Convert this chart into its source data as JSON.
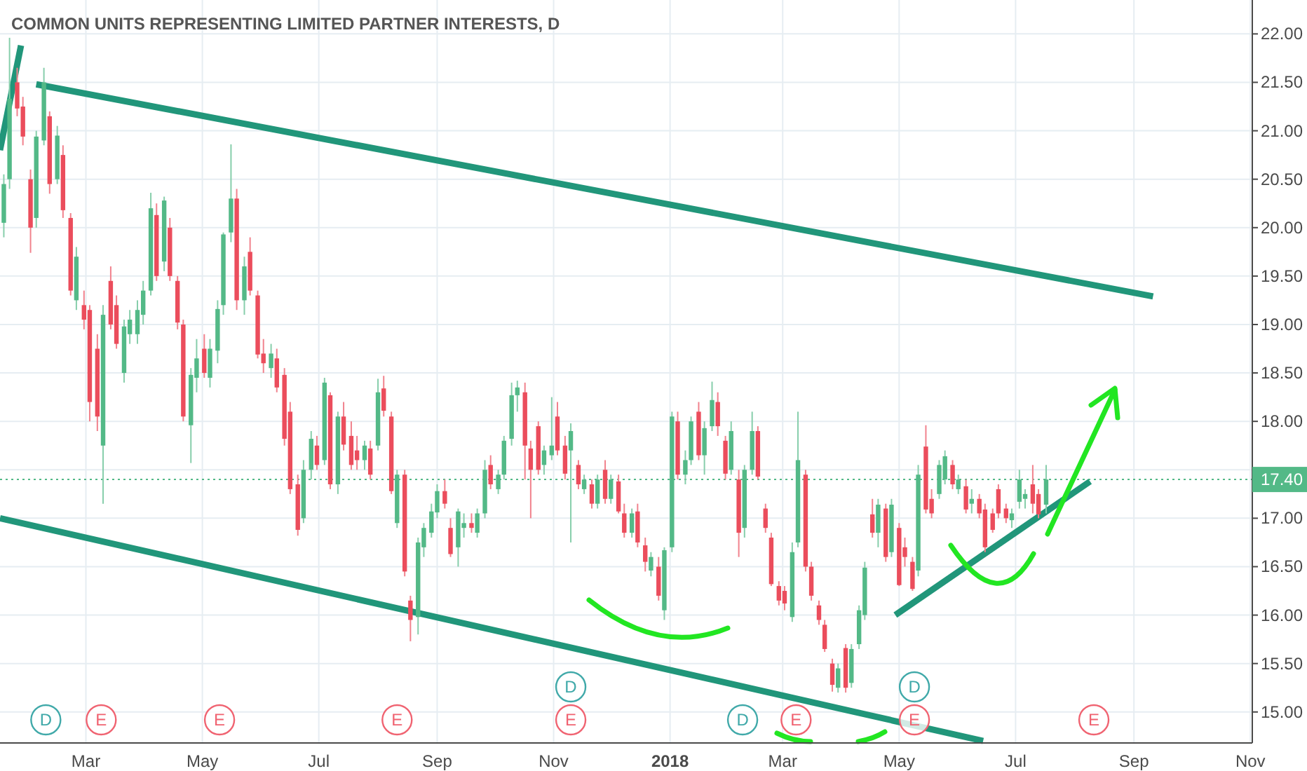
{
  "chart_data": {
    "type": "candlestick",
    "title": "COMMON UNITS REPRESENTING LIMITED PARTNER INTERESTS, D",
    "xlim": [
      "2017-01-15",
      "2018-11-02"
    ],
    "ylim": [
      14.68,
      22.35
    ],
    "xticks": [
      {
        "value": "2017-03-01",
        "label": "Mar"
      },
      {
        "value": "2017-05-01",
        "label": "May"
      },
      {
        "value": "2017-07-01",
        "label": "Jul"
      },
      {
        "value": "2017-09-01",
        "label": "Sep"
      },
      {
        "value": "2017-11-01",
        "label": "Nov"
      },
      {
        "value": "2018-01-01",
        "label": "2018"
      },
      {
        "value": "2018-03-01",
        "label": "Mar"
      },
      {
        "value": "2018-05-01",
        "label": "May"
      },
      {
        "value": "2018-07-01",
        "label": "Jul"
      },
      {
        "value": "2018-09-01",
        "label": "Sep"
      },
      {
        "value": "2018-11-01",
        "label": "Nov"
      }
    ],
    "yticks": [
      {
        "value": 15,
        "label": "15.00"
      },
      {
        "value": 15.5,
        "label": "15.50"
      },
      {
        "value": 16,
        "label": "16.00"
      },
      {
        "value": 16.5,
        "label": "16.50"
      },
      {
        "value": 17,
        "label": "17.00"
      },
      {
        "value": 17.5,
        "label": null
      },
      {
        "value": 18,
        "label": "18.00"
      },
      {
        "value": 18.5,
        "label": "18.50"
      },
      {
        "value": 19,
        "label": "19.00"
      },
      {
        "value": 19.5,
        "label": "19.50"
      },
      {
        "value": 20,
        "label": "20.00"
      },
      {
        "value": 20.5,
        "label": "20.50"
      },
      {
        "value": 21,
        "label": "21.00"
      },
      {
        "value": 21.5,
        "label": "21.50"
      },
      {
        "value": 22,
        "label": "22.00"
      }
    ],
    "grid": true,
    "ref_lines": [
      {
        "axis": "y",
        "value": 17.4,
        "label": "17.40",
        "color": "#53b987",
        "line_style": "dotted"
      }
    ],
    "annotations": [
      {
        "text": "D",
        "x": "2017-02-08"
      },
      {
        "text": "E",
        "x": "2017-03-09"
      },
      {
        "text": "E",
        "x": "2017-05-10"
      },
      {
        "text": "E",
        "x": "2017-08-11"
      },
      {
        "text": "E",
        "x": "2017-11-10"
      },
      {
        "text": "D",
        "x": "2017-11-10"
      },
      {
        "text": "D",
        "x": "2018-02-08"
      },
      {
        "text": "E",
        "x": "2018-03-08"
      },
      {
        "text": "E",
        "x": "2018-05-09"
      },
      {
        "text": "D",
        "x": "2018-05-09"
      },
      {
        "text": "E",
        "x": "2018-08-11"
      }
    ],
    "series": [
      {
        "type": "line",
        "color": "#21967a",
        "x": [
          "2017-01-15",
          "2017-01-26"
        ],
        "values": [
          20.8,
          21.88
        ]
      },
      {
        "type": "line",
        "color": "#21967a",
        "x": [
          "2017-02-03",
          "2018-09-11"
        ],
        "values": [
          21.48,
          19.29
        ]
      },
      {
        "type": "line",
        "color": "#21967a",
        "x": [
          "2017-01-15",
          "2018-06-14"
        ],
        "values": [
          17.0,
          14.7
        ]
      },
      {
        "type": "line",
        "color": "#21967a",
        "x": [
          "2018-04-29",
          "2018-08-09"
        ],
        "values": [
          16.0,
          17.38
        ]
      },
      {
        "x": [
          "2017-01-17",
          "2017-01-20",
          "2017-01-24",
          "2017-01-27",
          "2017-01-31",
          "2017-02-03",
          "2017-02-07",
          "2017-02-10",
          "2017-02-14",
          "2017-02-17",
          "2017-02-21",
          "2017-02-24",
          "2017-02-28",
          "2017-03-03",
          "2017-03-07",
          "2017-03-10",
          "2017-03-14",
          "2017-03-17",
          "2017-03-21",
          "2017-03-24",
          "2017-03-28",
          "2017-03-31",
          "2017-04-04",
          "2017-04-07",
          "2017-04-11",
          "2017-04-14",
          "2017-04-18",
          "2017-04-21",
          "2017-04-25",
          "2017-04-28",
          "2017-05-02",
          "2017-05-05",
          "2017-05-09",
          "2017-05-12",
          "2017-05-16",
          "2017-05-19",
          "2017-05-23",
          "2017-05-26",
          "2017-05-30",
          "2017-06-02",
          "2017-06-06",
          "2017-06-09",
          "2017-06-13",
          "2017-06-16",
          "2017-06-20",
          "2017-06-23",
          "2017-06-27",
          "2017-06-30",
          "2017-07-04",
          "2017-07-07",
          "2017-07-11",
          "2017-07-14",
          "2017-07-18",
          "2017-07-21",
          "2017-07-25",
          "2017-07-28",
          "2017-08-01",
          "2017-08-04",
          "2017-08-08",
          "2017-08-11",
          "2017-08-15",
          "2017-08-18",
          "2017-08-22",
          "2017-08-25",
          "2017-08-29",
          "2017-09-01",
          "2017-09-05",
          "2017-09-08",
          "2017-09-12",
          "2017-09-15",
          "2017-09-19",
          "2017-09-22",
          "2017-09-26",
          "2017-09-29",
          "2017-10-03",
          "2017-10-06",
          "2017-10-10",
          "2017-10-13",
          "2017-10-17",
          "2017-10-20",
          "2017-10-24",
          "2017-10-27",
          "2017-10-31",
          "2017-11-03",
          "2017-11-07",
          "2017-11-10",
          "2017-11-14",
          "2017-11-17",
          "2017-11-21",
          "2017-11-24",
          "2017-11-28",
          "2017-12-01",
          "2017-12-05",
          "2017-12-08",
          "2017-12-12",
          "2017-12-15",
          "2017-12-19",
          "2017-12-22",
          "2017-12-26",
          "2017-12-29",
          "2018-01-02",
          "2018-01-05",
          "2018-01-09",
          "2018-01-12",
          "2018-01-16",
          "2018-01-19",
          "2018-01-23",
          "2018-01-26",
          "2018-01-30",
          "2018-02-02",
          "2018-02-06",
          "2018-02-09",
          "2018-02-13",
          "2018-02-16",
          "2018-02-20",
          "2018-02-23",
          "2018-02-27",
          "2018-03-02",
          "2018-03-06",
          "2018-03-09",
          "2018-03-13",
          "2018-03-16",
          "2018-03-20",
          "2018-03-23",
          "2018-03-27",
          "2018-03-30",
          "2018-04-03",
          "2018-04-06",
          "2018-04-10",
          "2018-04-13",
          "2018-04-17",
          "2018-04-20",
          "2018-04-24",
          "2018-04-27",
          "2018-05-01",
          "2018-05-04",
          "2018-05-08",
          "2018-05-11",
          "2018-05-15",
          "2018-05-18",
          "2018-05-22",
          "2018-05-25",
          "2018-05-29",
          "2018-06-01",
          "2018-06-05",
          "2018-06-08",
          "2018-06-12",
          "2018-06-15",
          "2018-06-19",
          "2018-06-22",
          "2018-06-26",
          "2018-06-29",
          "2018-07-03",
          "2018-07-06",
          "2018-07-10",
          "2018-07-13",
          "2018-07-17"
        ],
        "ohlc": [
          [
            20.05,
            20.55,
            19.9,
            20.45
          ],
          [
            20.5,
            21.96,
            20.4,
            21.33
          ],
          [
            21.5,
            21.65,
            21.15,
            21.23
          ],
          [
            21.25,
            21.35,
            20.85,
            20.94
          ],
          [
            20.5,
            20.6,
            19.74,
            20.0
          ],
          [
            20.1,
            21.0,
            20.0,
            20.94
          ],
          [
            20.9,
            21.65,
            20.85,
            21.5
          ],
          [
            21.15,
            21.2,
            20.35,
            20.45
          ],
          [
            20.5,
            21.05,
            20.45,
            20.95
          ],
          [
            20.75,
            20.85,
            20.1,
            20.18
          ],
          [
            20.1,
            20.15,
            19.3,
            19.35
          ],
          [
            19.25,
            19.8,
            19.15,
            19.7
          ],
          [
            19.2,
            19.35,
            18.95,
            19.05
          ],
          [
            19.15,
            19.2,
            18.0,
            18.2
          ],
          [
            18.75,
            18.9,
            17.9,
            18.05
          ],
          [
            17.75,
            19.2,
            17.15,
            19.1
          ],
          [
            19.45,
            19.6,
            18.95,
            19.0
          ],
          [
            19.2,
            19.3,
            18.75,
            18.8
          ],
          [
            18.5,
            19.05,
            18.4,
            18.98
          ],
          [
            18.9,
            19.15,
            18.8,
            19.05
          ],
          [
            18.9,
            19.25,
            18.8,
            19.15
          ],
          [
            19.1,
            19.45,
            19.0,
            19.35
          ],
          [
            19.35,
            20.36,
            19.3,
            20.2
          ],
          [
            20.13,
            20.25,
            19.45,
            19.5
          ],
          [
            19.65,
            20.32,
            19.55,
            20.28
          ],
          [
            20.0,
            20.1,
            19.45,
            19.5
          ],
          [
            19.45,
            19.5,
            18.95,
            19.02
          ],
          [
            19.0,
            19.05,
            18.0,
            18.05
          ],
          [
            17.96,
            18.55,
            17.57,
            18.48
          ],
          [
            18.45,
            18.85,
            18.3,
            18.65
          ],
          [
            18.75,
            18.9,
            18.45,
            18.5
          ],
          [
            18.45,
            18.85,
            18.35,
            18.75
          ],
          [
            18.73,
            19.25,
            18.6,
            19.16
          ],
          [
            19.2,
            19.95,
            19.1,
            19.93
          ],
          [
            19.95,
            20.86,
            19.85,
            20.3
          ],
          [
            20.3,
            20.4,
            19.15,
            19.25
          ],
          [
            19.25,
            19.7,
            19.1,
            19.6
          ],
          [
            19.75,
            19.9,
            19.3,
            19.35
          ],
          [
            19.3,
            19.35,
            18.65,
            18.69
          ],
          [
            18.7,
            18.85,
            18.5,
            18.6
          ],
          [
            18.55,
            18.8,
            18.45,
            18.7
          ],
          [
            18.65,
            18.75,
            18.3,
            18.35
          ],
          [
            18.48,
            18.55,
            17.75,
            17.82
          ],
          [
            18.1,
            18.2,
            17.25,
            17.3
          ],
          [
            17.35,
            17.45,
            16.82,
            16.88
          ],
          [
            17.0,
            17.6,
            16.95,
            17.5
          ],
          [
            17.5,
            17.9,
            17.4,
            17.82
          ],
          [
            17.75,
            17.85,
            17.5,
            17.55
          ],
          [
            17.6,
            18.45,
            17.55,
            18.4
          ],
          [
            18.27,
            18.3,
            17.3,
            17.35
          ],
          [
            17.35,
            18.1,
            17.25,
            18.05
          ],
          [
            18.05,
            18.2,
            17.7,
            17.76
          ],
          [
            17.85,
            18.0,
            17.5,
            17.55
          ],
          [
            17.7,
            17.85,
            17.5,
            17.6
          ],
          [
            17.6,
            17.8,
            17.5,
            17.75
          ],
          [
            17.72,
            17.8,
            17.4,
            17.45
          ],
          [
            17.75,
            18.44,
            17.7,
            18.3
          ],
          [
            18.34,
            18.47,
            18.05,
            18.11
          ],
          [
            18.05,
            18.1,
            17.25,
            17.28
          ],
          [
            16.95,
            17.5,
            16.9,
            17.45
          ],
          [
            17.45,
            17.5,
            16.4,
            16.45
          ],
          [
            16.15,
            16.2,
            15.73,
            15.95
          ],
          [
            15.98,
            16.8,
            15.8,
            16.75
          ],
          [
            16.7,
            16.95,
            16.6,
            16.9
          ],
          [
            16.85,
            17.15,
            16.8,
            17.07
          ],
          [
            17.06,
            17.35,
            17.0,
            17.28
          ],
          [
            17.28,
            17.4,
            17.1,
            17.15
          ],
          [
            16.9,
            17.0,
            16.6,
            16.63
          ],
          [
            16.7,
            17.1,
            16.5,
            17.07
          ],
          [
            16.9,
            17.05,
            16.8,
            16.95
          ],
          [
            16.95,
            17.05,
            16.85,
            16.9
          ],
          [
            16.85,
            17.1,
            16.8,
            17.05
          ],
          [
            17.05,
            17.6,
            17.0,
            17.5
          ],
          [
            17.55,
            17.65,
            17.3,
            17.35
          ],
          [
            17.3,
            17.5,
            17.25,
            17.45
          ],
          [
            17.45,
            17.85,
            17.4,
            17.8
          ],
          [
            17.82,
            18.4,
            17.75,
            18.27
          ],
          [
            18.27,
            18.42,
            18.1,
            18.35
          ],
          [
            18.3,
            18.4,
            17.4,
            17.75
          ],
          [
            17.72,
            17.8,
            17.0,
            17.5
          ],
          [
            17.95,
            18.0,
            17.45,
            17.5
          ],
          [
            17.55,
            17.75,
            17.45,
            17.7
          ],
          [
            17.65,
            18.25,
            17.6,
            17.75
          ],
          [
            18.05,
            18.2,
            17.65,
            17.7
          ],
          [
            17.75,
            17.85,
            17.4,
            17.46
          ],
          [
            17.7,
            17.98,
            16.75,
            17.9
          ],
          [
            17.55,
            17.6,
            17.3,
            17.35
          ],
          [
            17.3,
            17.45,
            17.25,
            17.4
          ],
          [
            17.35,
            17.4,
            17.1,
            17.15
          ],
          [
            17.15,
            17.45,
            17.1,
            17.4
          ],
          [
            17.5,
            17.6,
            17.15,
            17.2
          ],
          [
            17.2,
            17.45,
            17.15,
            17.4
          ],
          [
            17.38,
            17.45,
            17.05,
            17.07
          ],
          [
            17.05,
            17.15,
            16.8,
            16.85
          ],
          [
            16.85,
            17.1,
            16.8,
            17.05
          ],
          [
            17.07,
            17.15,
            16.7,
            16.75
          ],
          [
            16.72,
            16.8,
            16.45,
            16.55
          ],
          [
            16.46,
            16.65,
            16.4,
            16.6
          ],
          [
            16.5,
            16.6,
            16.15,
            16.2
          ],
          [
            16.05,
            16.7,
            15.95,
            16.67
          ],
          [
            16.7,
            18.1,
            16.65,
            18.05
          ],
          [
            18.0,
            18.1,
            17.4,
            17.45
          ],
          [
            17.45,
            17.7,
            17.35,
            17.6
          ],
          [
            17.6,
            18.05,
            17.55,
            18.0
          ],
          [
            18.1,
            18.2,
            17.6,
            17.65
          ],
          [
            17.65,
            18.0,
            17.45,
            17.93
          ],
          [
            17.95,
            18.41,
            17.9,
            18.22
          ],
          [
            18.2,
            18.3,
            17.85,
            17.95
          ],
          [
            17.8,
            17.85,
            17.4,
            17.46
          ],
          [
            17.5,
            18.0,
            17.45,
            17.9
          ],
          [
            17.4,
            17.5,
            16.6,
            16.85
          ],
          [
            16.9,
            17.55,
            16.8,
            17.5
          ],
          [
            17.5,
            18.1,
            17.45,
            17.9
          ],
          [
            17.9,
            17.95,
            17.4,
            17.43
          ],
          [
            17.1,
            17.15,
            16.85,
            16.9
          ],
          [
            16.8,
            16.85,
            16.3,
            16.32
          ],
          [
            16.3,
            16.35,
            16.1,
            16.15
          ],
          [
            16.25,
            16.3,
            16.05,
            16.12
          ],
          [
            15.98,
            16.75,
            15.93,
            16.65
          ],
          [
            16.75,
            18.1,
            16.7,
            17.6
          ],
          [
            17.45,
            17.5,
            16.45,
            16.5
          ],
          [
            16.5,
            16.55,
            16.15,
            16.2
          ],
          [
            16.1,
            16.15,
            15.9,
            15.95
          ],
          [
            15.9,
            15.95,
            15.62,
            15.65
          ],
          [
            15.5,
            15.55,
            15.21,
            15.28
          ],
          [
            15.25,
            15.5,
            15.2,
            15.45
          ],
          [
            15.66,
            15.7,
            15.2,
            15.25
          ],
          [
            15.3,
            15.7,
            15.25,
            15.65
          ],
          [
            15.7,
            16.1,
            15.65,
            16.05
          ],
          [
            16.0,
            16.55,
            15.95,
            16.49
          ],
          [
            17.04,
            17.2,
            16.8,
            16.85
          ],
          [
            16.85,
            17.2,
            16.7,
            17.14
          ],
          [
            17.1,
            17.15,
            16.55,
            16.6
          ],
          [
            16.65,
            17.2,
            16.6,
            17.14
          ],
          [
            16.9,
            16.95,
            16.3,
            16.31
          ],
          [
            16.7,
            16.8,
            16.5,
            16.6
          ],
          [
            16.55,
            16.6,
            16.25,
            16.27
          ],
          [
            16.46,
            17.55,
            16.4,
            17.45
          ],
          [
            17.74,
            17.96,
            17.05,
            17.09
          ],
          [
            17.2,
            17.3,
            17.0,
            17.05
          ],
          [
            17.25,
            17.6,
            17.2,
            17.55
          ],
          [
            17.4,
            17.7,
            17.35,
            17.64
          ],
          [
            17.55,
            17.6,
            17.3,
            17.35
          ],
          [
            17.3,
            17.45,
            17.25,
            17.4
          ],
          [
            17.33,
            17.4,
            17.05,
            17.09
          ],
          [
            17.15,
            17.3,
            17.05,
            17.2
          ],
          [
            17.2,
            17.25,
            17.0,
            17.05
          ],
          [
            17.09,
            17.15,
            16.65,
            16.7
          ],
          [
            17.05,
            17.1,
            16.85,
            16.88
          ],
          [
            17.3,
            17.35,
            17.0,
            17.05
          ],
          [
            17.1,
            17.15,
            16.95,
            17.0
          ],
          [
            16.98,
            17.1,
            16.9,
            17.05
          ],
          [
            17.17,
            17.5,
            17.1,
            17.4
          ],
          [
            17.2,
            17.3,
            17.1,
            17.25
          ],
          [
            17.35,
            17.55,
            17.05,
            17.15
          ],
          [
            17.25,
            17.3,
            17.0,
            17.04
          ],
          [
            17.14,
            17.55,
            17.05,
            17.4
          ]
        ],
        "colors": [
          "#53b987",
          "#53b987",
          "#eb4d5c",
          "#eb4d5c",
          "#eb4d5c",
          "#53b987",
          "#53b987",
          "#eb4d5c",
          "#53b987",
          "#eb4d5c",
          "#eb4d5c",
          "#53b987",
          "#eb4d5c",
          "#eb4d5c",
          "#eb4d5c",
          "#53b987",
          "#eb4d5c",
          "#eb4d5c",
          "#53b987",
          "#53b987",
          "#53b987",
          "#53b987",
          "#53b987",
          "#eb4d5c",
          "#53b987",
          "#eb4d5c",
          "#eb4d5c",
          "#eb4d5c",
          "#53b987",
          "#53b987",
          "#eb4d5c",
          "#53b987",
          "#53b987",
          "#53b987",
          "#53b987",
          "#eb4d5c",
          "#53b987",
          "#eb4d5c",
          "#eb4d5c",
          "#eb4d5c",
          "#53b987",
          "#eb4d5c",
          "#eb4d5c",
          "#eb4d5c",
          "#eb4d5c",
          "#53b987",
          "#53b987",
          "#eb4d5c",
          "#53b987",
          "#eb4d5c",
          "#53b987",
          "#eb4d5c",
          "#eb4d5c",
          "#eb4d5c",
          "#53b987",
          "#eb4d5c",
          "#53b987",
          "#eb4d5c",
          "#eb4d5c",
          "#53b987",
          "#eb4d5c",
          "#eb4d5c",
          "#53b987",
          "#53b987",
          "#53b987",
          "#53b987",
          "#eb4d5c",
          "#eb4d5c",
          "#53b987",
          "#53b987",
          "#eb4d5c",
          "#53b987",
          "#53b987",
          "#eb4d5c",
          "#53b987",
          "#53b987",
          "#53b987",
          "#53b987",
          "#eb4d5c",
          "#eb4d5c",
          "#eb4d5c",
          "#53b987",
          "#53b987",
          "#eb4d5c",
          "#eb4d5c",
          "#53b987",
          "#eb4d5c",
          "#53b987",
          "#eb4d5c",
          "#53b987",
          "#eb4d5c",
          "#53b987",
          "#eb4d5c",
          "#eb4d5c",
          "#53b987",
          "#eb4d5c",
          "#eb4d5c",
          "#53b987",
          "#eb4d5c",
          "#53b987",
          "#53b987",
          "#eb4d5c",
          "#53b987",
          "#53b987",
          "#eb4d5c",
          "#53b987",
          "#53b987",
          "#eb4d5c",
          "#eb4d5c",
          "#53b987",
          "#eb4d5c",
          "#53b987",
          "#53b987",
          "#eb4d5c",
          "#eb4d5c",
          "#eb4d5c",
          "#eb4d5c",
          "#eb4d5c",
          "#53b987",
          "#53b987",
          "#eb4d5c",
          "#eb4d5c",
          "#eb4d5c",
          "#eb4d5c",
          "#eb4d5c",
          "#53b987",
          "#eb4d5c",
          "#53b987",
          "#53b987",
          "#53b987",
          "#eb4d5c",
          "#53b987",
          "#eb4d5c",
          "#53b987",
          "#eb4d5c",
          "#eb4d5c",
          "#eb4d5c",
          "#53b987",
          "#eb4d5c",
          "#eb4d5c",
          "#53b987",
          "#53b987",
          "#eb4d5c",
          "#53b987",
          "#eb4d5c",
          "#53b987",
          "#eb4d5c",
          "#eb4d5c",
          "#eb4d5c",
          "#eb4d5c",
          "#eb4d5c",
          "#53b987",
          "#53b987",
          "#53b987",
          "#eb4d5c",
          "#eb4d5c",
          "#53b987"
        ]
      }
    ]
  }
}
